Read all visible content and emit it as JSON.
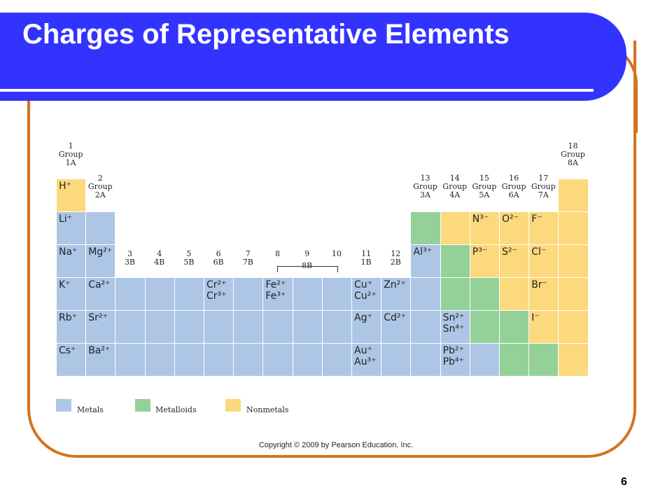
{
  "slide": {
    "title": "Charges of Representative Elements",
    "copyright": "Copyright © 2009 by Pearson Education, Inc.",
    "page_number": "6"
  },
  "group_headers": [
    {
      "id": "g1",
      "text": "1\nGroup\n1A"
    },
    {
      "id": "g2",
      "text": "2\nGroup\n2A"
    },
    {
      "id": "g3",
      "text": "3\n3B"
    },
    {
      "id": "g4",
      "text": "4\n4B"
    },
    {
      "id": "g5",
      "text": "5\n5B"
    },
    {
      "id": "g6",
      "text": "6\n6B"
    },
    {
      "id": "g7",
      "text": "7\n7B"
    },
    {
      "id": "g8",
      "text": "8"
    },
    {
      "id": "g9",
      "text": "9"
    },
    {
      "id": "g10",
      "text": "10"
    },
    {
      "id": "g8b",
      "text": "8B"
    },
    {
      "id": "g11",
      "text": "11\n1B"
    },
    {
      "id": "g12",
      "text": "12\n2B"
    },
    {
      "id": "g13",
      "text": "13\nGroup\n3A"
    },
    {
      "id": "g14",
      "text": "14\nGroup\n4A"
    },
    {
      "id": "g15",
      "text": "15\nGroup\n5A"
    },
    {
      "id": "g16",
      "text": "16\nGroup\n6A"
    },
    {
      "id": "g17",
      "text": "17\nGroup\n7A"
    },
    {
      "id": "g18",
      "text": "18\nGroup\n8A"
    }
  ],
  "ions": {
    "H": "H⁺",
    "Li": "Li⁺",
    "Na": "Na⁺",
    "K": "K⁺",
    "Rb": "Rb⁺",
    "Cs": "Cs⁺",
    "Mg": "Mg²⁺",
    "Ca": "Ca²⁺",
    "Sr": "Sr²⁺",
    "Ba": "Ba²⁺",
    "Cr": "Cr²⁺\nCr³⁺",
    "Fe": "Fe²⁺\nFe³⁺",
    "Cu": "Cu⁺\nCu²⁺",
    "Zn": "Zn²⁺",
    "Ag": "Ag⁺",
    "Cd": "Cd²⁺",
    "Au": "Au⁺\nAu³⁺",
    "Al": "Al³⁺",
    "Sn": "Sn²⁺\nSn⁴⁺",
    "Pb": "Pb²⁺\nPb⁴⁺",
    "N": "N³⁻",
    "O": "O²⁻",
    "F": "F⁻",
    "P": "P³⁻",
    "S": "S²⁻",
    "Cl": "Cl⁻",
    "Br": "Br⁻",
    "I": "I⁻"
  },
  "legend": [
    {
      "label": "Metals",
      "color": "#adc6e5"
    },
    {
      "label": "Metalloids",
      "color": "#93d199"
    },
    {
      "label": "Nonmetals",
      "color": "#fbd97c"
    }
  ],
  "colors": {
    "title_bar": "#3333ff",
    "frame": "#d2741f",
    "metal": "#adc6e5",
    "metalloid": "#93d199",
    "nonmetal": "#fbd97c"
  }
}
